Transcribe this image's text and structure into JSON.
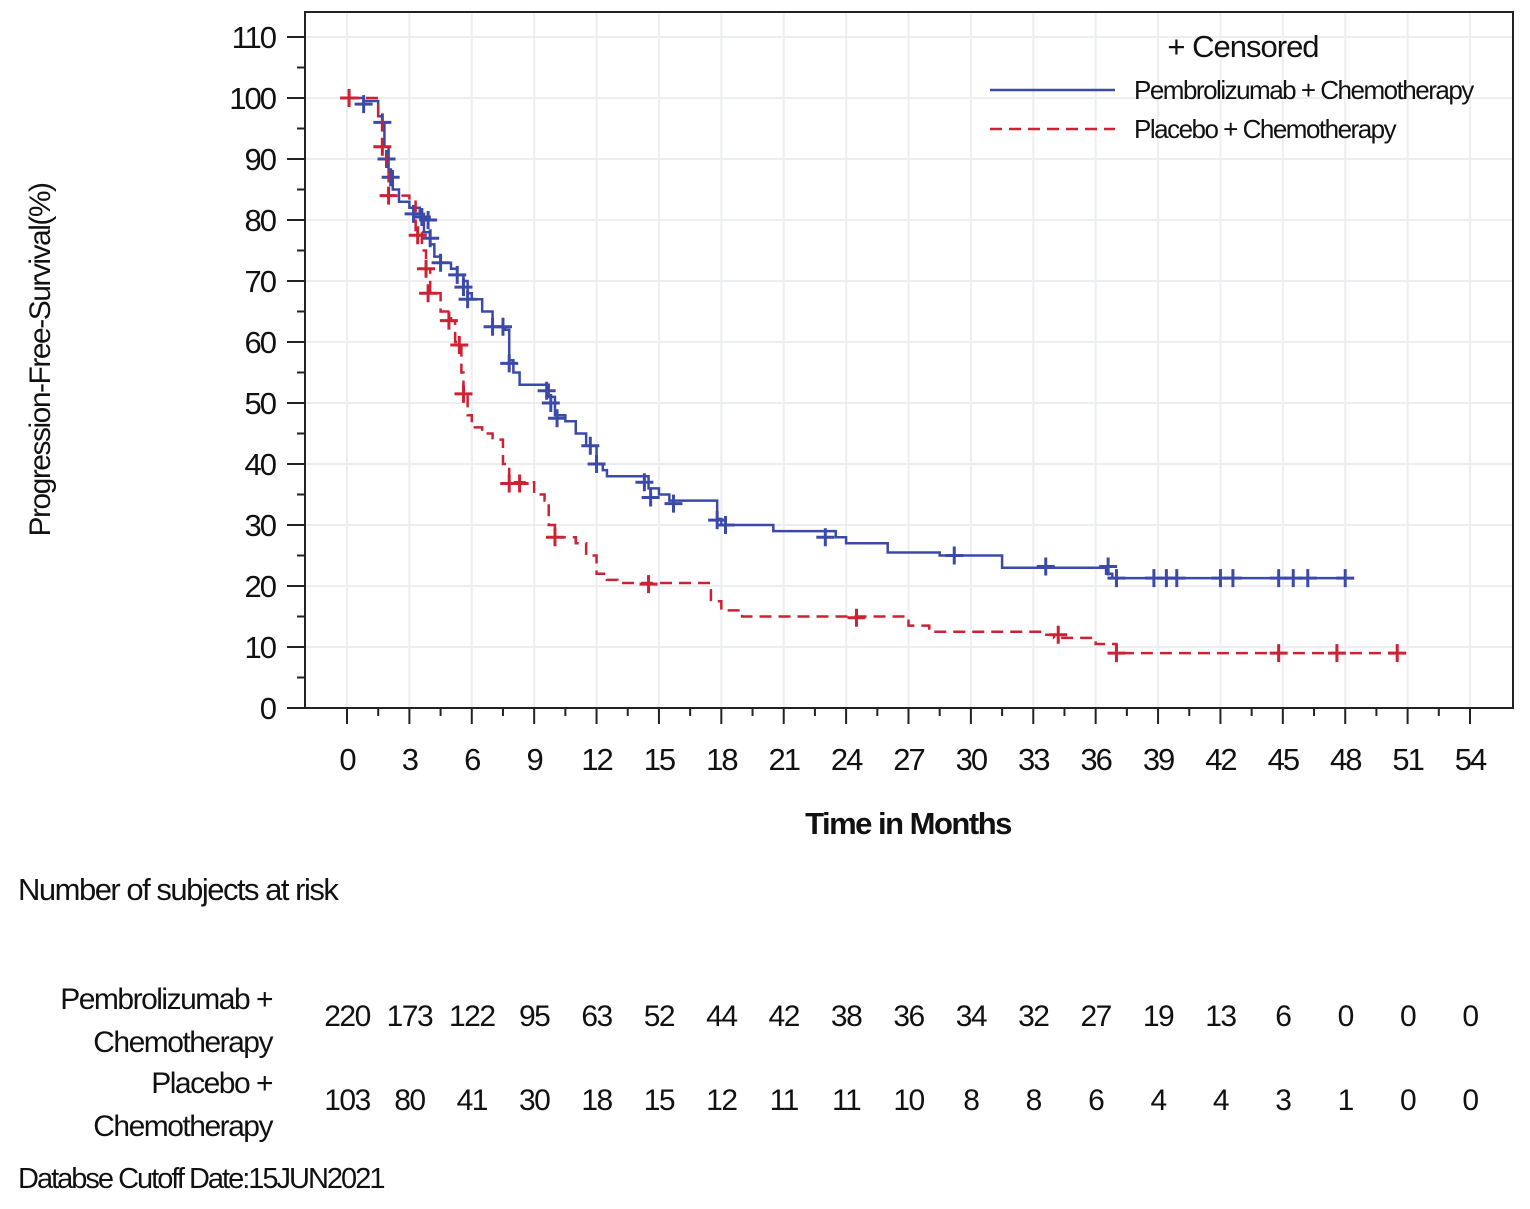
{
  "chart_data": {
    "type": "line",
    "subtype": "kaplan-meier step",
    "xlabel": "Time in Months",
    "ylabel": "Progression-Free-Survival(%)",
    "xlim": [
      -3,
      56
    ],
    "ylim": [
      0,
      115
    ],
    "x_ticks": [
      0,
      3,
      6,
      9,
      12,
      15,
      18,
      21,
      24,
      27,
      30,
      33,
      36,
      39,
      42,
      45,
      48,
      51,
      54
    ],
    "y_ticks": [
      0,
      10,
      20,
      30,
      40,
      50,
      60,
      70,
      80,
      90,
      100,
      110
    ],
    "grid": true,
    "legend": {
      "placement": "top-right",
      "censor_label": "+ Censored"
    },
    "series": [
      {
        "name": "Pembrolizumab + Chemotherapy",
        "color": "#3b4aa8",
        "style": "solid",
        "steps": [
          [
            0,
            100
          ],
          [
            0.8,
            99.5
          ],
          [
            1.5,
            97
          ],
          [
            1.7,
            96
          ],
          [
            1.8,
            92
          ],
          [
            2,
            88
          ],
          [
            2.2,
            85
          ],
          [
            2.5,
            83
          ],
          [
            3,
            82
          ],
          [
            3.5,
            81
          ],
          [
            3.7,
            78
          ],
          [
            4,
            76
          ],
          [
            4.2,
            74
          ],
          [
            4.5,
            73
          ],
          [
            5,
            72
          ],
          [
            5.3,
            71
          ],
          [
            5.6,
            70
          ],
          [
            5.8,
            68
          ],
          [
            6,
            67
          ],
          [
            6.5,
            65
          ],
          [
            7,
            62.5
          ],
          [
            7.6,
            62
          ],
          [
            7.8,
            57
          ],
          [
            8,
            55
          ],
          [
            8.3,
            53
          ],
          [
            9.5,
            53
          ],
          [
            9.7,
            51
          ],
          [
            10,
            48
          ],
          [
            10.5,
            47
          ],
          [
            11,
            45
          ],
          [
            11.5,
            43
          ],
          [
            12,
            40
          ],
          [
            12.3,
            39
          ],
          [
            12.5,
            38
          ],
          [
            14,
            38
          ],
          [
            14.5,
            36
          ],
          [
            15,
            35
          ],
          [
            15.5,
            34
          ],
          [
            17,
            34
          ],
          [
            17.8,
            31
          ],
          [
            18,
            30
          ],
          [
            20,
            30
          ],
          [
            20.5,
            29
          ],
          [
            23,
            29
          ],
          [
            23.5,
            28
          ],
          [
            24,
            27
          ],
          [
            25.5,
            27
          ],
          [
            26,
            25.5
          ],
          [
            28,
            25.5
          ],
          [
            28.5,
            25
          ],
          [
            31,
            25
          ],
          [
            31.5,
            23
          ],
          [
            36,
            23
          ],
          [
            36.5,
            22
          ],
          [
            36.8,
            21.3
          ],
          [
            48,
            21.3
          ]
        ],
        "censored": [
          [
            0.8,
            99
          ],
          [
            1.7,
            96
          ],
          [
            1.9,
            90
          ],
          [
            2.1,
            87
          ],
          [
            3.2,
            81
          ],
          [
            3.6,
            80.5
          ],
          [
            3.9,
            80
          ],
          [
            4,
            77
          ],
          [
            4.5,
            73
          ],
          [
            5.3,
            71
          ],
          [
            5.6,
            69
          ],
          [
            5.8,
            67
          ],
          [
            7,
            62.5
          ],
          [
            7.5,
            62.5
          ],
          [
            7.8,
            56.5
          ],
          [
            9.6,
            52
          ],
          [
            9.8,
            50
          ],
          [
            10.1,
            47.5
          ],
          [
            11.7,
            43
          ],
          [
            12,
            40
          ],
          [
            14.3,
            37
          ],
          [
            14.6,
            34.5
          ],
          [
            15.7,
            33.5
          ],
          [
            17.8,
            30.8
          ],
          [
            18.2,
            30
          ],
          [
            23,
            28
          ],
          [
            29.2,
            25
          ],
          [
            33.6,
            23.2
          ],
          [
            36.6,
            23.2
          ],
          [
            37,
            21.3
          ],
          [
            38.8,
            21.3
          ],
          [
            39.4,
            21.3
          ],
          [
            39.9,
            21.3
          ],
          [
            42,
            21.3
          ],
          [
            42.6,
            21.3
          ],
          [
            44.8,
            21.3
          ],
          [
            45.5,
            21.3
          ],
          [
            46.2,
            21.3
          ],
          [
            48,
            21.3
          ]
        ],
        "at_risk": [
          220,
          173,
          122,
          95,
          63,
          52,
          44,
          42,
          38,
          36,
          34,
          32,
          27,
          19,
          13,
          6,
          0,
          0,
          0
        ]
      },
      {
        "name": "Placebo + Chemotherapy",
        "color": "#cc2233",
        "style": "dashed",
        "steps": [
          [
            0,
            100
          ],
          [
            1.5,
            97
          ],
          [
            1.7,
            92
          ],
          [
            1.9,
            88
          ],
          [
            2,
            84
          ],
          [
            3,
            83
          ],
          [
            3.3,
            78
          ],
          [
            3.6,
            75
          ],
          [
            3.8,
            72
          ],
          [
            4,
            68
          ],
          [
            4.5,
            65
          ],
          [
            5,
            63.5
          ],
          [
            5.2,
            60
          ],
          [
            5.5,
            55
          ],
          [
            5.6,
            52
          ],
          [
            5.8,
            48
          ],
          [
            6,
            46
          ],
          [
            6.5,
            45
          ],
          [
            7,
            44
          ],
          [
            7.5,
            40
          ],
          [
            7.8,
            37
          ],
          [
            8.5,
            37
          ],
          [
            9,
            35
          ],
          [
            9.5,
            34
          ],
          [
            9.7,
            30
          ],
          [
            10,
            28
          ],
          [
            11,
            27
          ],
          [
            11.5,
            25
          ],
          [
            12,
            22
          ],
          [
            12.5,
            21
          ],
          [
            13,
            20.5
          ],
          [
            17,
            20.5
          ],
          [
            17.5,
            17.5
          ],
          [
            18,
            16
          ],
          [
            19,
            15
          ],
          [
            26.5,
            15
          ],
          [
            27,
            13.5
          ],
          [
            28,
            12.5
          ],
          [
            33.5,
            12
          ],
          [
            34,
            11.5
          ],
          [
            36,
            10.5
          ],
          [
            37,
            9
          ],
          [
            50.5,
            9
          ]
        ],
        "censored": [
          [
            0.1,
            100
          ],
          [
            1.7,
            92
          ],
          [
            2,
            84
          ],
          [
            3.4,
            77.5
          ],
          [
            3.8,
            72
          ],
          [
            3.9,
            68
          ],
          [
            4.9,
            63.5
          ],
          [
            5.4,
            59.5
          ],
          [
            5.6,
            51.5
          ],
          [
            7.8,
            36.8
          ],
          [
            8.3,
            36.8
          ],
          [
            10,
            28
          ],
          [
            14.5,
            20.3
          ],
          [
            24.5,
            14.8
          ],
          [
            34.2,
            12
          ],
          [
            37,
            9
          ],
          [
            44.8,
            9
          ],
          [
            47.6,
            9
          ],
          [
            50.5,
            9
          ]
        ],
        "at_risk": [
          103,
          80,
          41,
          30,
          18,
          15,
          12,
          11,
          11,
          10,
          8,
          8,
          6,
          4,
          4,
          3,
          1,
          0,
          0
        ]
      }
    ]
  },
  "risk_table": {
    "title": "Number of subjects at risk",
    "rows": [
      {
        "label_line1": "Pembrolizumab +",
        "label_line2": "Chemotherapy"
      },
      {
        "label_line1": "Placebo +",
        "label_line2": "Chemotherapy"
      }
    ]
  },
  "footer": "Databse Cutoff Date:15JUN2021"
}
